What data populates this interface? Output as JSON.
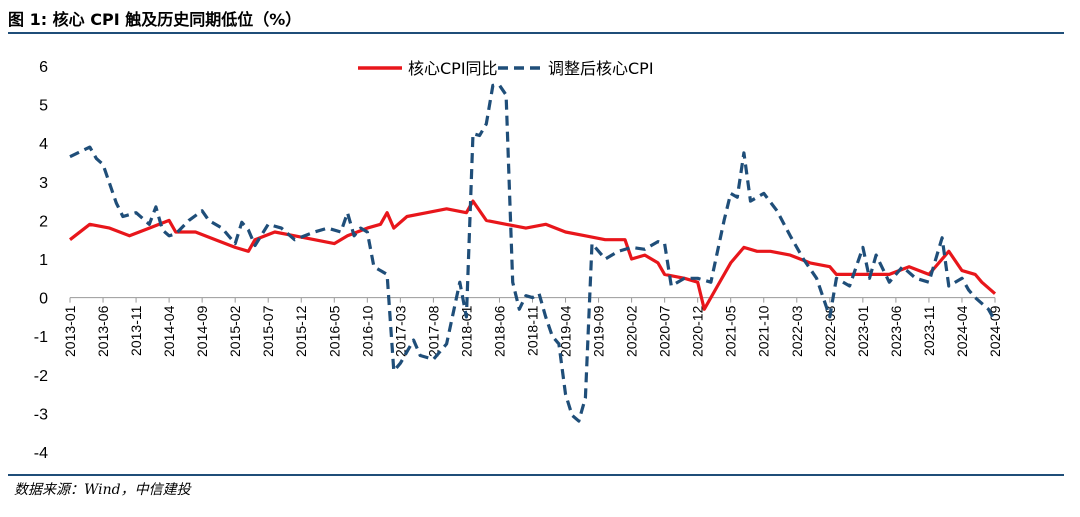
{
  "figure": {
    "title": "图 1: 核心 CPI 触及历史同期低位（%）",
    "source": "数据来源：Wind，中信建投"
  },
  "chart_data": {
    "type": "line",
    "title": "图 1: 核心 CPI 触及历史同期低位（%）",
    "xlabel": "",
    "ylabel": "",
    "ylim": [
      -4,
      6
    ],
    "yticks": [
      -4,
      -3,
      -2,
      -1,
      0,
      1,
      2,
      3,
      4,
      5,
      6
    ],
    "x_tick_labels": [
      "2013-01",
      "2013-06",
      "2013-11",
      "2014-04",
      "2014-09",
      "2015-02",
      "2015-07",
      "2015-12",
      "2016-05",
      "2016-10",
      "2017-03",
      "2017-08",
      "2018-01",
      "2018-06",
      "2018-11",
      "2019-04",
      "2019-09",
      "2020-02",
      "2020-07",
      "2020-12",
      "2021-05",
      "2021-10",
      "2022-03",
      "2022-08",
      "2023-01",
      "2023-06",
      "2023-11",
      "2024-04",
      "2024-09"
    ],
    "x_start": "2013-01",
    "x_end": "2024-09",
    "grid": false,
    "legend_position": "top-center",
    "series": [
      {
        "name": "核心CPI同比",
        "color": "#e8161b",
        "style": "solid",
        "points": [
          [
            "2013-01",
            1.5
          ],
          [
            "2013-04",
            1.9
          ],
          [
            "2013-07",
            1.8
          ],
          [
            "2013-10",
            1.6
          ],
          [
            "2014-01",
            1.8
          ],
          [
            "2014-04",
            2.0
          ],
          [
            "2014-05",
            1.7
          ],
          [
            "2014-08",
            1.7
          ],
          [
            "2014-11",
            1.5
          ],
          [
            "2015-02",
            1.3
          ],
          [
            "2015-04",
            1.2
          ],
          [
            "2015-05",
            1.5
          ],
          [
            "2015-08",
            1.7
          ],
          [
            "2015-11",
            1.6
          ],
          [
            "2016-02",
            1.5
          ],
          [
            "2016-05",
            1.4
          ],
          [
            "2016-07",
            1.6
          ],
          [
            "2016-10",
            1.8
          ],
          [
            "2016-12",
            1.9
          ],
          [
            "2017-01",
            2.2
          ],
          [
            "2017-02",
            1.8
          ],
          [
            "2017-04",
            2.1
          ],
          [
            "2017-07",
            2.2
          ],
          [
            "2017-10",
            2.3
          ],
          [
            "2018-01",
            2.2
          ],
          [
            "2018-02",
            2.5
          ],
          [
            "2018-04",
            2.0
          ],
          [
            "2018-07",
            1.9
          ],
          [
            "2018-10",
            1.8
          ],
          [
            "2019-01",
            1.9
          ],
          [
            "2019-04",
            1.7
          ],
          [
            "2019-07",
            1.6
          ],
          [
            "2019-10",
            1.5
          ],
          [
            "2020-01",
            1.5
          ],
          [
            "2020-02",
            1.0
          ],
          [
            "2020-04",
            1.1
          ],
          [
            "2020-06",
            0.9
          ],
          [
            "2020-07",
            0.6
          ],
          [
            "2020-10",
            0.5
          ],
          [
            "2020-12",
            0.4
          ],
          [
            "2021-01",
            -0.3
          ],
          [
            "2021-03",
            0.3
          ],
          [
            "2021-05",
            0.9
          ],
          [
            "2021-07",
            1.3
          ],
          [
            "2021-09",
            1.2
          ],
          [
            "2021-11",
            1.2
          ],
          [
            "2022-02",
            1.1
          ],
          [
            "2022-05",
            0.9
          ],
          [
            "2022-08",
            0.8
          ],
          [
            "2022-09",
            0.6
          ],
          [
            "2022-11",
            0.6
          ],
          [
            "2023-02",
            0.6
          ],
          [
            "2023-05",
            0.6
          ],
          [
            "2023-08",
            0.8
          ],
          [
            "2023-11",
            0.6
          ],
          [
            "2024-02",
            1.2
          ],
          [
            "2024-04",
            0.7
          ],
          [
            "2024-06",
            0.6
          ],
          [
            "2024-07",
            0.4
          ],
          [
            "2024-09",
            0.1
          ]
        ]
      },
      {
        "name": "调整后核心CPI",
        "color": "#1f4e79",
        "style": "dashed",
        "points": [
          [
            "2013-01",
            3.65
          ],
          [
            "2013-04",
            3.9
          ],
          [
            "2013-05",
            3.6
          ],
          [
            "2013-06",
            3.45
          ],
          [
            "2013-08",
            2.45
          ],
          [
            "2013-09",
            2.1
          ],
          [
            "2013-11",
            2.2
          ],
          [
            "2014-01",
            1.9
          ],
          [
            "2014-02",
            2.35
          ],
          [
            "2014-03",
            1.75
          ],
          [
            "2014-04",
            1.6
          ],
          [
            "2014-05",
            1.65
          ],
          [
            "2014-07",
            2.0
          ],
          [
            "2014-09",
            2.25
          ],
          [
            "2014-10",
            2.0
          ],
          [
            "2014-12",
            1.8
          ],
          [
            "2015-02",
            1.4
          ],
          [
            "2015-03",
            1.95
          ],
          [
            "2015-04",
            1.75
          ],
          [
            "2015-05",
            1.35
          ],
          [
            "2015-07",
            1.9
          ],
          [
            "2015-09",
            1.8
          ],
          [
            "2015-11",
            1.5
          ],
          [
            "2016-02",
            1.7
          ],
          [
            "2016-04",
            1.8
          ],
          [
            "2016-06",
            1.7
          ],
          [
            "2016-07",
            2.2
          ],
          [
            "2016-08",
            1.6
          ],
          [
            "2016-09",
            1.8
          ],
          [
            "2016-10",
            1.7
          ],
          [
            "2016-11",
            0.8
          ],
          [
            "2017-01",
            0.6
          ],
          [
            "2017-02",
            -1.9
          ],
          [
            "2017-03",
            -1.7
          ],
          [
            "2017-05",
            -1.1
          ],
          [
            "2017-06",
            -1.5
          ],
          [
            "2017-08",
            -1.6
          ],
          [
            "2017-10",
            -1.2
          ],
          [
            "2017-12",
            0.4
          ],
          [
            "2018-01",
            -0.5
          ],
          [
            "2018-02",
            4.25
          ],
          [
            "2018-03",
            4.2
          ],
          [
            "2018-04",
            4.5
          ],
          [
            "2018-05",
            5.5
          ],
          [
            "2018-06",
            5.5
          ],
          [
            "2018-07",
            5.25
          ],
          [
            "2018-08",
            0.4
          ],
          [
            "2018-09",
            -0.3
          ],
          [
            "2018-10",
            0.05
          ],
          [
            "2018-11",
            0.0
          ],
          [
            "2018-12",
            0.1
          ],
          [
            "2019-01",
            -0.5
          ],
          [
            "2019-02",
            -1.0
          ],
          [
            "2019-03",
            -1.2
          ],
          [
            "2019-04",
            -2.5
          ],
          [
            "2019-05",
            -3.05
          ],
          [
            "2019-06",
            -3.2
          ],
          [
            "2019-07",
            -2.6
          ],
          [
            "2019-08",
            1.4
          ],
          [
            "2019-10",
            1.0
          ],
          [
            "2019-12",
            1.2
          ],
          [
            "2020-02",
            1.3
          ],
          [
            "2020-04",
            1.25
          ],
          [
            "2020-06",
            1.45
          ],
          [
            "2020-07",
            1.4
          ],
          [
            "2020-08",
            0.3
          ],
          [
            "2020-10",
            0.5
          ],
          [
            "2020-12",
            0.5
          ],
          [
            "2021-02",
            0.4
          ],
          [
            "2021-04",
            2.0
          ],
          [
            "2021-05",
            2.7
          ],
          [
            "2021-06",
            2.6
          ],
          [
            "2021-07",
            3.75
          ],
          [
            "2021-08",
            2.5
          ],
          [
            "2021-10",
            2.7
          ],
          [
            "2021-12",
            2.25
          ],
          [
            "2022-02",
            1.6
          ],
          [
            "2022-04",
            1.0
          ],
          [
            "2022-06",
            0.5
          ],
          [
            "2022-08",
            -0.5
          ],
          [
            "2022-09",
            0.5
          ],
          [
            "2022-11",
            0.3
          ],
          [
            "2023-01",
            1.3
          ],
          [
            "2023-02",
            0.5
          ],
          [
            "2023-03",
            1.1
          ],
          [
            "2023-05",
            0.4
          ],
          [
            "2023-07",
            0.8
          ],
          [
            "2023-09",
            0.5
          ],
          [
            "2023-11",
            0.4
          ],
          [
            "2024-01",
            1.55
          ],
          [
            "2024-02",
            0.3
          ],
          [
            "2024-04",
            0.5
          ],
          [
            "2024-05",
            0.2
          ],
          [
            "2024-06",
            0.0
          ],
          [
            "2024-08",
            -0.3
          ],
          [
            "2024-09",
            -0.6
          ]
        ]
      }
    ]
  }
}
